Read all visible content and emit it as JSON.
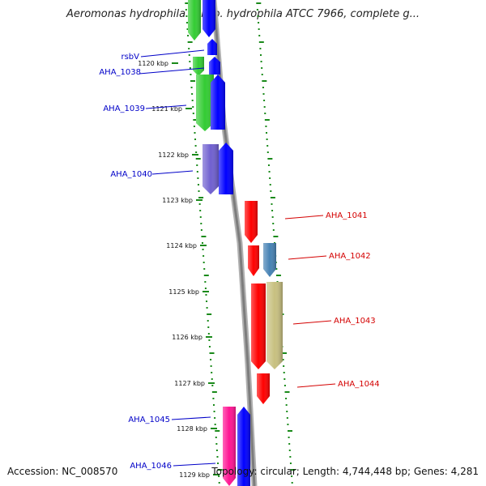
{
  "title": "Aeromonas hydrophila subsp. hydrophila ATCC 7966, complete g...",
  "footer": {
    "accession": "Accession: NC_008570",
    "stats": "Topology: circular; Length: 4,744,448 bp; Genes: 4,281"
  },
  "colors": {
    "left_label": "#0000c8",
    "right_label": "#d40000",
    "tick_marks": "#1a8a1a",
    "backbone": "#8a8a8a"
  },
  "kbp_ticks": [
    "1120 kbp",
    "1121 kbp",
    "1122 kbp",
    "1123 kbp",
    "1124 kbp",
    "1125 kbp",
    "1126 kbp",
    "1127 kbp",
    "1128 kbp",
    "1129 kbp"
  ],
  "genes": [
    {
      "label": "rsbV",
      "side": "left",
      "color": "#0000ff"
    },
    {
      "label": "AHA_1038",
      "side": "left",
      "color": "#0000ff"
    },
    {
      "label": "AHA_1039",
      "side": "left",
      "color": "#33cc33"
    },
    {
      "label": "AHA_1040",
      "side": "left",
      "color": "#7060d0"
    },
    {
      "label": "AHA_1041",
      "side": "right",
      "color": "#ff0000"
    },
    {
      "label": "AHA_1042",
      "side": "right",
      "color": "#4682b4"
    },
    {
      "label": "AHA_1043",
      "side": "right",
      "color": "#c8c080"
    },
    {
      "label": "AHA_1044",
      "side": "right",
      "color": "#ff0000"
    },
    {
      "label": "AHA_1045",
      "side": "left",
      "color": "#ff1493"
    },
    {
      "label": "AHA_1046",
      "side": "left",
      "color": "#0000ff"
    }
  ]
}
